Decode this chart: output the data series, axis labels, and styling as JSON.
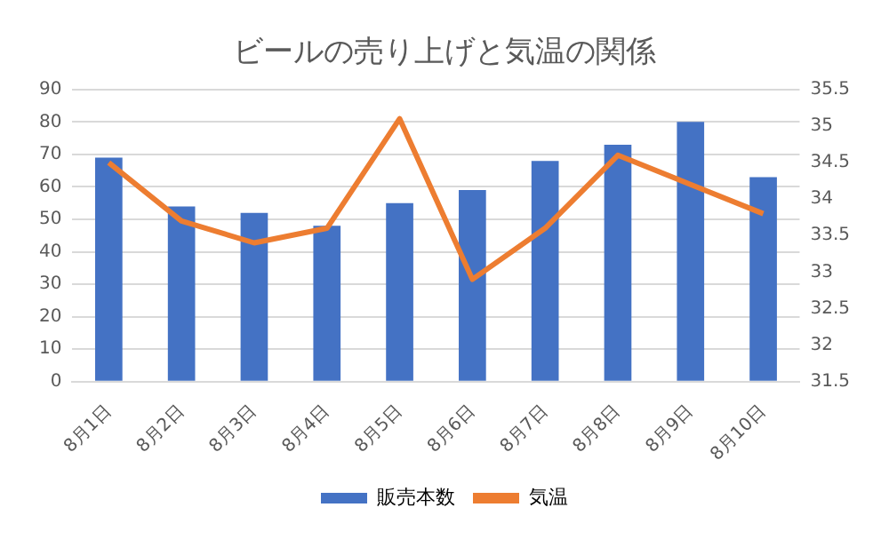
{
  "chart_data": {
    "type": "bar",
    "title": "ビールの売り上げと気温の関係",
    "categories": [
      "8月1日",
      "8月2日",
      "8月3日",
      "8月4日",
      "8月5日",
      "8月6日",
      "8月7日",
      "8月8日",
      "8月9日",
      "8月10日"
    ],
    "series": [
      {
        "name": "販売本数",
        "color": "#4472c4",
        "values": [
          69,
          54,
          52,
          48,
          55,
          59,
          68,
          73,
          80,
          63
        ]
      },
      {
        "name": "気温",
        "type": "line",
        "axis": "y2",
        "color": "#ed7d31",
        "values": [
          34.5,
          33.7,
          33.4,
          33.6,
          35.1,
          32.9,
          33.6,
          34.6,
          34.2,
          33.8
        ]
      }
    ],
    "ylim": [
      0,
      90
    ],
    "yticks": [
      0,
      10,
      20,
      30,
      40,
      50,
      60,
      70,
      80,
      90
    ],
    "y2lim": [
      31.5,
      35.5
    ],
    "y2ticks": [
      31.5,
      32,
      32.5,
      33,
      33.5,
      34,
      34.5,
      35,
      35.5
    ],
    "grid": "y",
    "legend": "bottom",
    "marker": "none"
  }
}
